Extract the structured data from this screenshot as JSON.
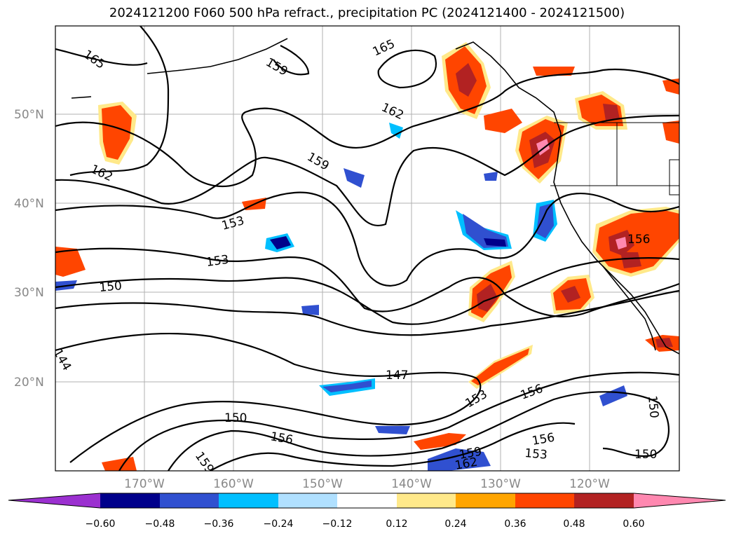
{
  "title": "2024121200 F060 500 hPa refract., precipitation PC (2024121400 - 2024121500)",
  "lat_labels": [
    "50°N",
    "40°N",
    "30°N",
    "20°N"
  ],
  "lon_labels": [
    "170°W",
    "160°W",
    "150°W",
    "140°W",
    "130°W",
    "120°W"
  ],
  "contour_labels": [
    "165",
    "159",
    "165",
    "162",
    "162",
    "159",
    "153",
    "153",
    "150",
    "147",
    "153",
    "156",
    "150",
    "156",
    "159",
    "156",
    "153",
    "150",
    "150",
    "156",
    "144",
    "159",
    "162"
  ],
  "colorbar": {
    "ticks": [
      "−0.60",
      "−0.48",
      "−0.36",
      "−0.24",
      "−0.12",
      "0.12",
      "0.24",
      "0.36",
      "0.48",
      "0.60"
    ],
    "colors": [
      "#9b30d0",
      "#00008b",
      "#3050d0",
      "#00bfff",
      "#b0e0ff",
      "#ffffff",
      "#ffe98a",
      "#ffa500",
      "#ff4500",
      "#b22222",
      "#ff88b0"
    ]
  }
}
